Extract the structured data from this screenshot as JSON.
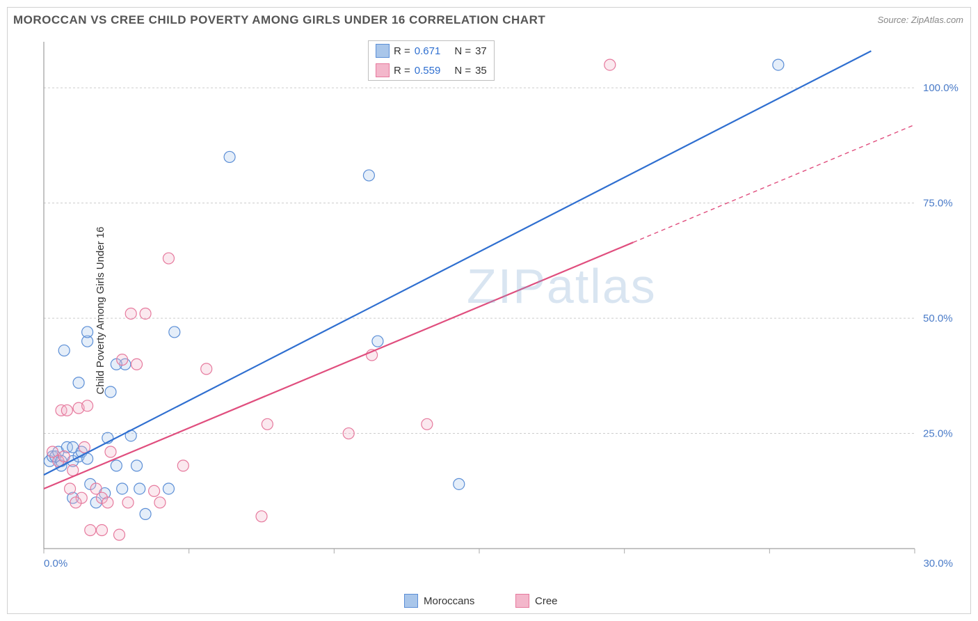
{
  "title": "MOROCCAN VS CREE CHILD POVERTY AMONG GIRLS UNDER 16 CORRELATION CHART",
  "source": "Source: ZipAtlas.com",
  "ylabel": "Child Poverty Among Girls Under 16",
  "watermark": "ZIPatlas",
  "chart": {
    "type": "scatter-regression",
    "xlim": [
      0,
      30
    ],
    "ylim": [
      0,
      110
    ],
    "xticks": [
      0.0,
      5.0,
      10.0,
      15.0,
      20.0,
      25.0,
      30.0
    ],
    "xtick_labels": [
      "0.0%",
      "",
      "",
      "",
      "",
      "",
      "30.0%"
    ],
    "yticks": [
      25.0,
      50.0,
      75.0,
      100.0
    ],
    "ytick_labels": [
      "25.0%",
      "50.0%",
      "75.0%",
      "100.0%"
    ],
    "grid_color": "#cccccc",
    "background_color": "#ffffff",
    "marker_radius": 8,
    "marker_stroke_width": 1.2,
    "marker_fill_opacity": 0.3,
    "line_width": 2.2,
    "series": [
      {
        "name": "Moroccans",
        "color_stroke": "#5b8ed6",
        "color_fill": "#a9c6ea",
        "line_color": "#2f6fd0",
        "R": 0.671,
        "N": 37,
        "regression": {
          "x1": 0,
          "y1": 16,
          "x2": 28.5,
          "y2": 108,
          "dashed_from_x": null
        },
        "points": [
          {
            "x": 0.2,
            "y": 19
          },
          {
            "x": 0.3,
            "y": 20
          },
          {
            "x": 0.4,
            "y": 20
          },
          {
            "x": 0.5,
            "y": 21
          },
          {
            "x": 0.6,
            "y": 19
          },
          {
            "x": 0.8,
            "y": 22
          },
          {
            "x": 0.6,
            "y": 18
          },
          {
            "x": 1.0,
            "y": 19
          },
          {
            "x": 1.2,
            "y": 20
          },
          {
            "x": 1.0,
            "y": 22
          },
          {
            "x": 1.3,
            "y": 21
          },
          {
            "x": 1.5,
            "y": 19.5
          },
          {
            "x": 1.5,
            "y": 45
          },
          {
            "x": 1.2,
            "y": 36
          },
          {
            "x": 1.5,
            "y": 47
          },
          {
            "x": 2.2,
            "y": 24
          },
          {
            "x": 2.5,
            "y": 18
          },
          {
            "x": 2.7,
            "y": 13
          },
          {
            "x": 2.8,
            "y": 40
          },
          {
            "x": 3.0,
            "y": 24.5
          },
          {
            "x": 3.2,
            "y": 18
          },
          {
            "x": 3.3,
            "y": 13
          },
          {
            "x": 3.5,
            "y": 7.5
          },
          {
            "x": 4.3,
            "y": 13
          },
          {
            "x": 4.5,
            "y": 47
          },
          {
            "x": 6.4,
            "y": 85
          },
          {
            "x": 11.2,
            "y": 81
          },
          {
            "x": 11.5,
            "y": 45
          },
          {
            "x": 14.3,
            "y": 14
          },
          {
            "x": 25.3,
            "y": 105
          },
          {
            "x": 1.8,
            "y": 10
          },
          {
            "x": 2.1,
            "y": 12
          },
          {
            "x": 2.3,
            "y": 34
          },
          {
            "x": 2.5,
            "y": 40
          },
          {
            "x": 0.7,
            "y": 43
          },
          {
            "x": 1.0,
            "y": 11
          },
          {
            "x": 1.6,
            "y": 14
          }
        ]
      },
      {
        "name": "Cree",
        "color_stroke": "#e6799d",
        "color_fill": "#f3b7cb",
        "line_color": "#e04e7e",
        "R": 0.559,
        "N": 35,
        "regression": {
          "x1": 0,
          "y1": 13,
          "x2": 30,
          "y2": 92,
          "dashed_from_x": 20.3
        },
        "points": [
          {
            "x": 0.3,
            "y": 21
          },
          {
            "x": 0.5,
            "y": 19
          },
          {
            "x": 0.6,
            "y": 30
          },
          {
            "x": 0.8,
            "y": 30
          },
          {
            "x": 1.2,
            "y": 30.5
          },
          {
            "x": 1.3,
            "y": 11
          },
          {
            "x": 1.4,
            "y": 22
          },
          {
            "x": 1.6,
            "y": 4
          },
          {
            "x": 1.8,
            "y": 13
          },
          {
            "x": 2.0,
            "y": 11
          },
          {
            "x": 2.2,
            "y": 10
          },
          {
            "x": 2.3,
            "y": 21
          },
          {
            "x": 2.6,
            "y": 3
          },
          {
            "x": 2.7,
            "y": 41
          },
          {
            "x": 2.9,
            "y": 10
          },
          {
            "x": 3.0,
            "y": 51
          },
          {
            "x": 3.2,
            "y": 40
          },
          {
            "x": 3.5,
            "y": 51
          },
          {
            "x": 3.8,
            "y": 12.5
          },
          {
            "x": 4.0,
            "y": 10
          },
          {
            "x": 4.3,
            "y": 63
          },
          {
            "x": 4.8,
            "y": 18
          },
          {
            "x": 5.6,
            "y": 39
          },
          {
            "x": 7.5,
            "y": 7
          },
          {
            "x": 7.7,
            "y": 27
          },
          {
            "x": 10.5,
            "y": 25
          },
          {
            "x": 11.3,
            "y": 42
          },
          {
            "x": 13.2,
            "y": 27
          },
          {
            "x": 19.5,
            "y": 105
          },
          {
            "x": 1.0,
            "y": 17
          },
          {
            "x": 1.1,
            "y": 10
          },
          {
            "x": 1.5,
            "y": 31
          },
          {
            "x": 0.9,
            "y": 13
          },
          {
            "x": 0.7,
            "y": 20
          },
          {
            "x": 2.0,
            "y": 4
          }
        ]
      }
    ]
  },
  "legend": {
    "stats": [
      {
        "swatch_fill": "#a9c6ea",
        "swatch_stroke": "#5b8ed6",
        "R_label": "R",
        "R_value": "0.671",
        "N_label": "N",
        "N_value": "37"
      },
      {
        "swatch_fill": "#f3b7cb",
        "swatch_stroke": "#e6799d",
        "R_label": "R",
        "R_value": "0.559",
        "N_label": "N",
        "N_value": "35"
      }
    ],
    "bottom": [
      {
        "swatch_fill": "#a9c6ea",
        "swatch_stroke": "#5b8ed6",
        "label": "Moroccans"
      },
      {
        "swatch_fill": "#f3b7cb",
        "swatch_stroke": "#e6799d",
        "label": "Cree"
      }
    ]
  }
}
